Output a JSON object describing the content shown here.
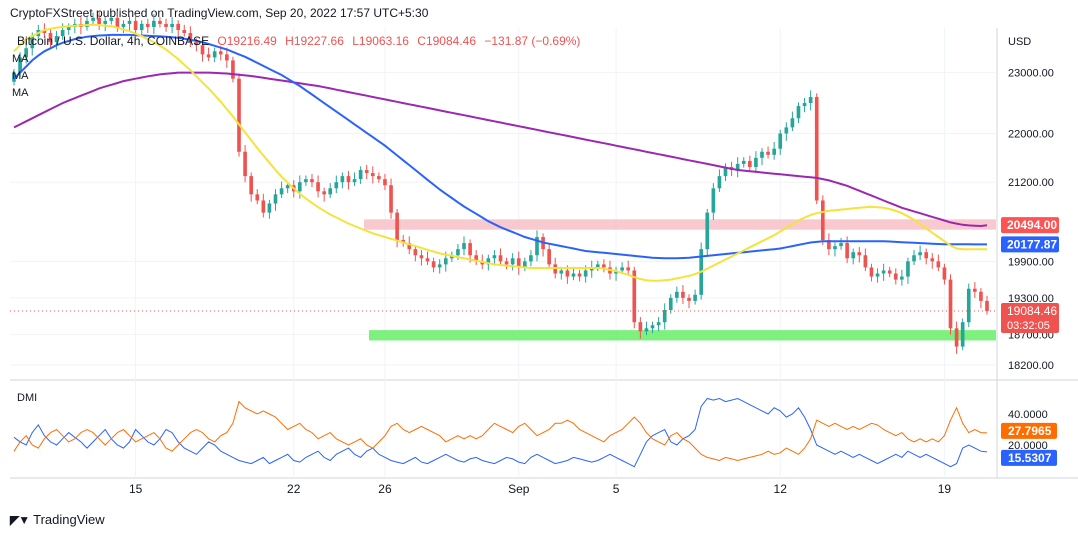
{
  "header": {
    "published": "CryptoFXStreet published on TradingView.com, Sep 20, 2022 17:57 UTC+5:30"
  },
  "legend": {
    "symbol": "Bitcoin / U.S. Dollar, 4h, COINBASE",
    "open": "O19216.49",
    "high": "H19227.66",
    "low": "L19063.16",
    "close": "C19084.46",
    "change": "−131.87 (−0.69%)",
    "ma_labels": [
      "MA",
      "MA",
      "MA"
    ]
  },
  "indicator": {
    "name": "DMI"
  },
  "footer": {
    "brand": "TradingView"
  },
  "colors": {
    "up": "#26a69a",
    "down": "#ef5350",
    "ma_fast": "#f5e33b",
    "ma_mid": "#2962ff",
    "ma_slow": "#9c27b0",
    "resistance": "#f8bbc4",
    "support": "#7ef07e",
    "di_plus": "#2962ff",
    "di_minus": "#ff6d00"
  },
  "chart_data": [
    {
      "type": "candlestick",
      "currency_label": "USD",
      "ylim": [
        18000,
        23700
      ],
      "y_ticks": [
        23000,
        22000,
        21200,
        19900,
        19300,
        18700,
        18200
      ],
      "y_tick_labels": [
        "23000.00",
        "22000.00",
        "21200.00",
        "19900.00",
        "19300.00",
        "18700.00",
        "18200.00"
      ],
      "x_ticks": [
        {
          "label": "15",
          "index": 20
        },
        {
          "label": "22",
          "index": 46
        },
        {
          "label": "26",
          "index": 61
        },
        {
          "label": "Sep",
          "index": 83
        },
        {
          "label": "5",
          "index": 99
        },
        {
          "label": "12",
          "index": 126
        },
        {
          "label": "19",
          "index": 153
        }
      ],
      "last_price": {
        "value": 19084.46,
        "label": "19084.46",
        "countdown": "03:32:05"
      },
      "price_labels": [
        {
          "value": 20494.0,
          "label": "20494.00",
          "color": "#ff5252"
        },
        {
          "value": 20177.87,
          "label": "20177.87",
          "color": "#2962ff"
        }
      ],
      "resistance_zone": [
        20420,
        20590
      ],
      "support_zone": [
        18600,
        18770
      ],
      "close": [
        23000,
        23250,
        23400,
        23600,
        23700,
        23650,
        23500,
        23600,
        23700,
        23750,
        23800,
        23750,
        23850,
        23900,
        23800,
        23850,
        23900,
        23750,
        23800,
        23850,
        23700,
        23800,
        23750,
        23850,
        23800,
        23750,
        23800,
        23700,
        23650,
        23500,
        23450,
        23300,
        23250,
        23350,
        23300,
        23200,
        22900,
        21700,
        21300,
        21000,
        20900,
        20700,
        20850,
        21000,
        21100,
        21150,
        21050,
        21200,
        21250,
        21200,
        21050,
        21000,
        21100,
        21200,
        21300,
        21200,
        21250,
        21400,
        21350,
        21300,
        21250,
        21150,
        20700,
        20250,
        20200,
        20100,
        20000,
        19950,
        19900,
        19800,
        19850,
        19950,
        20000,
        20100,
        20200,
        20000,
        19900,
        19850,
        19950,
        20000,
        19900,
        19850,
        19950,
        19800,
        19900,
        20000,
        20300,
        20100,
        19850,
        19700,
        19750,
        19650,
        19700,
        19650,
        19750,
        19800,
        19850,
        19800,
        19700,
        19750,
        19800,
        19750,
        18900,
        18750,
        18800,
        18850,
        18900,
        19100,
        19300,
        19400,
        19300,
        19250,
        19350,
        20100,
        20700,
        21100,
        21300,
        21450,
        21400,
        21500,
        21550,
        21450,
        21600,
        21700,
        21650,
        21750,
        22000,
        22100,
        22250,
        22450,
        22500,
        22600,
        20900,
        20250,
        20100,
        20150,
        20200,
        19950,
        20050,
        20000,
        19800,
        19650,
        19700,
        19750,
        19700,
        19600,
        19650,
        19900,
        20000,
        20050,
        19950,
        19900,
        19800,
        19600,
        18800,
        18500,
        18900,
        19450,
        19400,
        19250,
        19084
      ],
      "ma_fast": [
        23350,
        23450,
        23550,
        23600,
        23650,
        23700,
        23720,
        23740,
        23750,
        23760,
        23770,
        23775,
        23780,
        23785,
        23780,
        23770,
        23760,
        23740,
        23710,
        23680,
        23640,
        23600,
        23550,
        23500,
        23440,
        23380,
        23300,
        23220,
        23130,
        23040,
        22940,
        22840,
        22740,
        22630,
        22520,
        22400,
        22280,
        22150,
        22020,
        21890,
        21760,
        21640,
        21520,
        21400,
        21290,
        21190,
        21100,
        21010,
        20930,
        20860,
        20790,
        20730,
        20670,
        20620,
        20570,
        20520,
        20480,
        20440,
        20400,
        20360,
        20330,
        20300,
        20270,
        20240,
        20210,
        20180,
        20150,
        20120,
        20090,
        20060,
        20030,
        20010,
        19990,
        19970,
        19950,
        19930,
        19910,
        19890,
        19870,
        19850,
        19840,
        19830,
        19820,
        19810,
        19800,
        19790,
        19790,
        19790,
        19790,
        19790,
        19790,
        19790,
        19790,
        19790,
        19790,
        19790,
        19790,
        19780,
        19760,
        19740,
        19710,
        19680,
        19640,
        19610,
        19590,
        19580,
        19580,
        19590,
        19600,
        19620,
        19640,
        19660,
        19690,
        19730,
        19780,
        19830,
        19880,
        19930,
        19980,
        20030,
        20080,
        20130,
        20180,
        20230,
        20280,
        20330,
        20390,
        20450,
        20510,
        20570,
        20620,
        20660,
        20690,
        20710,
        20730,
        20740,
        20750,
        20760,
        20770,
        20780,
        20790,
        20795,
        20790,
        20780,
        20760,
        20730,
        20690,
        20640,
        20580,
        20510,
        20440,
        20370,
        20300,
        20230,
        20160,
        20110,
        20100,
        20100,
        20100,
        20100,
        20100
      ],
      "ma_mid": [
        22900,
        23000,
        23100,
        23200,
        23280,
        23350,
        23400,
        23450,
        23490,
        23520,
        23550,
        23570,
        23590,
        23600,
        23610,
        23615,
        23620,
        23620,
        23620,
        23620,
        23615,
        23610,
        23605,
        23600,
        23595,
        23590,
        23580,
        23570,
        23555,
        23540,
        23520,
        23500,
        23470,
        23440,
        23410,
        23380,
        23340,
        23300,
        23260,
        23210,
        23160,
        23110,
        23060,
        23010,
        22960,
        22900,
        22840,
        22780,
        22710,
        22640,
        22570,
        22500,
        22430,
        22360,
        22290,
        22220,
        22150,
        22080,
        22010,
        21940,
        21870,
        21800,
        21720,
        21640,
        21560,
        21480,
        21400,
        21320,
        21240,
        21160,
        21080,
        21010,
        20940,
        20870,
        20800,
        20740,
        20680,
        20620,
        20560,
        20510,
        20460,
        20420,
        20380,
        20340,
        20300,
        20270,
        20240,
        20210,
        20190,
        20170,
        20150,
        20130,
        20110,
        20090,
        20070,
        20060,
        20050,
        20040,
        20030,
        20020,
        20010,
        20000,
        19990,
        19980,
        19970,
        19960,
        19955,
        19950,
        19950,
        19950,
        19955,
        19960,
        19970,
        19980,
        19990,
        20000,
        20010,
        20020,
        20030,
        20040,
        20050,
        20060,
        20070,
        20080,
        20090,
        20100,
        20110,
        20130,
        20150,
        20170,
        20190,
        20210,
        20220,
        20230,
        20230,
        20230,
        20230,
        20230,
        20230,
        20230,
        20230,
        20230,
        20230,
        20230,
        20225,
        20220,
        20215,
        20210,
        20205,
        20200,
        20195,
        20190,
        20185,
        20180,
        20180,
        20180,
        20180,
        20180,
        20178,
        20178,
        20178
      ],
      "ma_slow": [
        22100,
        22150,
        22200,
        22250,
        22300,
        22350,
        22400,
        22450,
        22500,
        22540,
        22580,
        22620,
        22660,
        22700,
        22740,
        22770,
        22800,
        22830,
        22860,
        22880,
        22900,
        22920,
        22940,
        22955,
        22970,
        22980,
        22990,
        23000,
        23000,
        23000,
        23000,
        23000,
        23000,
        22995,
        22990,
        22985,
        22975,
        22965,
        22955,
        22945,
        22930,
        22915,
        22900,
        22885,
        22870,
        22855,
        22840,
        22825,
        22810,
        22795,
        22780,
        22760,
        22740,
        22720,
        22700,
        22680,
        22660,
        22640,
        22620,
        22600,
        22580,
        22560,
        22540,
        22520,
        22500,
        22480,
        22460,
        22440,
        22420,
        22400,
        22380,
        22360,
        22340,
        22320,
        22300,
        22280,
        22260,
        22240,
        22220,
        22200,
        22180,
        22160,
        22140,
        22120,
        22100,
        22080,
        22060,
        22040,
        22020,
        22000,
        21980,
        21960,
        21940,
        21920,
        21900,
        21880,
        21860,
        21840,
        21820,
        21800,
        21780,
        21760,
        21740,
        21720,
        21700,
        21680,
        21660,
        21640,
        21620,
        21600,
        21580,
        21560,
        21540,
        21520,
        21500,
        21480,
        21460,
        21440,
        21420,
        21400,
        21390,
        21380,
        21370,
        21360,
        21350,
        21340,
        21330,
        21320,
        21310,
        21300,
        21290,
        21280,
        21270,
        21250,
        21230,
        21200,
        21170,
        21140,
        21100,
        21060,
        21020,
        20980,
        20940,
        20900,
        20860,
        20820,
        20780,
        20750,
        20720,
        20690,
        20660,
        20630,
        20600,
        20570,
        20540,
        20520,
        20500,
        20490,
        20485,
        20480,
        20494
      ]
    },
    {
      "type": "line",
      "name": "DMI",
      "ylim": [
        0,
        60
      ],
      "y_tick_labels": [
        "40.0000",
        "20.0000"
      ],
      "last_values": [
        {
          "label": "27.7965",
          "color": "#ff6d00"
        },
        {
          "label": "15.5307",
          "color": "#2962ff"
        }
      ],
      "series": [
        {
          "color": "#2962ff",
          "values": [
            25,
            22,
            20,
            28,
            33,
            26,
            22,
            20,
            24,
            28,
            25,
            22,
            18,
            22,
            26,
            30,
            24,
            20,
            18,
            22,
            30,
            26,
            22,
            20,
            24,
            30,
            28,
            22,
            18,
            16,
            14,
            18,
            22,
            20,
            16,
            14,
            12,
            10,
            9,
            8,
            10,
            12,
            8,
            10,
            12,
            14,
            10,
            9,
            12,
            14,
            16,
            12,
            10,
            14,
            16,
            18,
            14,
            12,
            16,
            18,
            14,
            12,
            10,
            9,
            8,
            10,
            12,
            9,
            8,
            10,
            12,
            14,
            12,
            10,
            9,
            11,
            12,
            10,
            9,
            8,
            10,
            12,
            11,
            9,
            8,
            12,
            14,
            12,
            10,
            8,
            9,
            10,
            12,
            11,
            10,
            9,
            10,
            12,
            14,
            12,
            10,
            8,
            6,
            14,
            22,
            26,
            28,
            30,
            22,
            20,
            24,
            26,
            30,
            45,
            50,
            49,
            50,
            48,
            49,
            50,
            48,
            46,
            44,
            42,
            40,
            44,
            42,
            38,
            40,
            44,
            38,
            30,
            20,
            18,
            16,
            14,
            16,
            14,
            12,
            14,
            12,
            10,
            8,
            10,
            12,
            14,
            12,
            16,
            14,
            12,
            14,
            12,
            10,
            8,
            6,
            8,
            18,
            20,
            18,
            16,
            15.53
          ]
        },
        {
          "color": "#ff6d00",
          "values": [
            16,
            22,
            26,
            20,
            18,
            24,
            28,
            30,
            26,
            22,
            24,
            28,
            30,
            28,
            24,
            20,
            24,
            28,
            30,
            26,
            22,
            24,
            26,
            28,
            24,
            18,
            16,
            20,
            24,
            28,
            30,
            28,
            24,
            22,
            26,
            28,
            34,
            48,
            44,
            42,
            40,
            42,
            40,
            38,
            34,
            30,
            32,
            34,
            30,
            28,
            24,
            26,
            28,
            24,
            22,
            20,
            22,
            24,
            20,
            18,
            22,
            26,
            32,
            34,
            30,
            28,
            30,
            32,
            30,
            28,
            26,
            22,
            24,
            26,
            24,
            26,
            24,
            26,
            30,
            34,
            32,
            30,
            28,
            32,
            34,
            30,
            26,
            28,
            30,
            34,
            34,
            36,
            34,
            30,
            28,
            26,
            24,
            22,
            26,
            28,
            30,
            34,
            38,
            34,
            28,
            24,
            22,
            20,
            26,
            28,
            24,
            22,
            18,
            14,
            12,
            11,
            10,
            12,
            11,
            10,
            11,
            12,
            13,
            14,
            16,
            14,
            15,
            18,
            16,
            14,
            18,
            24,
            36,
            34,
            32,
            34,
            32,
            30,
            32,
            30,
            32,
            34,
            33,
            30,
            28,
            26,
            28,
            24,
            22,
            24,
            22,
            24,
            22,
            26,
            36,
            44,
            34,
            28,
            30,
            28,
            27.8
          ]
        }
      ]
    }
  ]
}
